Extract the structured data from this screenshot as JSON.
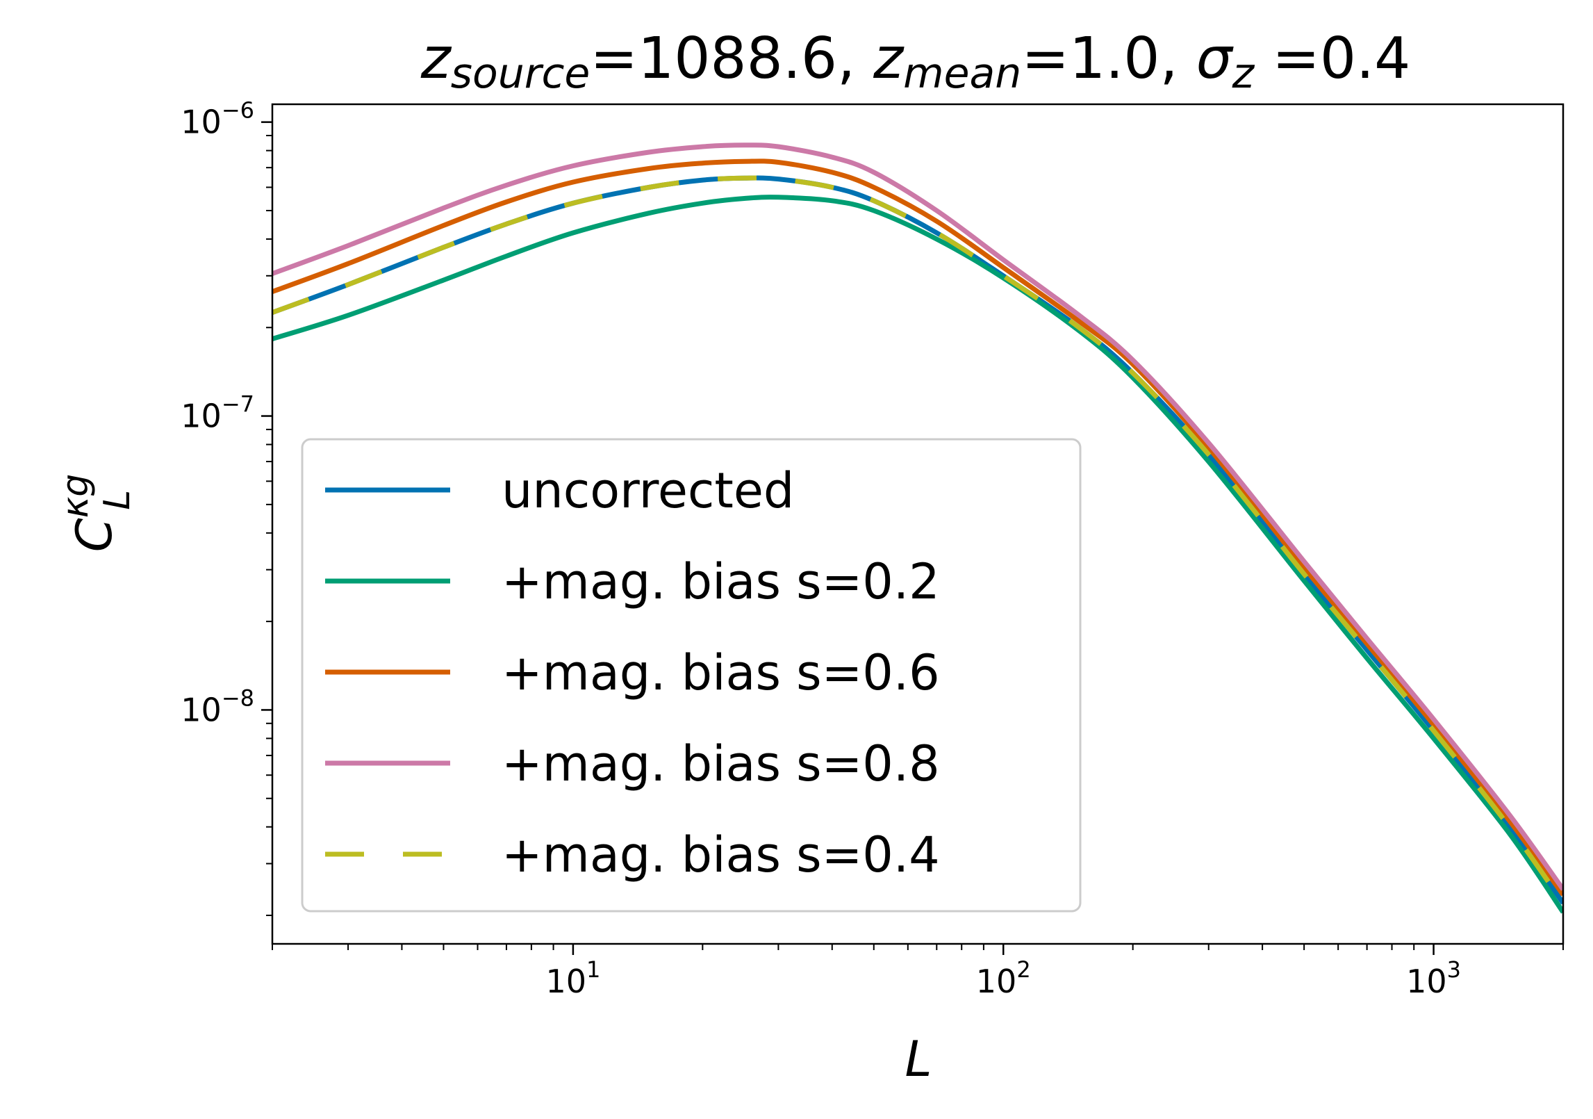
{
  "chart_data": {
    "type": "line",
    "title": {
      "parts": [
        {
          "text": "z",
          "style": "italic"
        },
        {
          "text": "source",
          "style": "italic-sub"
        },
        {
          "text": "=1088.6, ",
          "style": "normal"
        },
        {
          "text": "z",
          "style": "italic"
        },
        {
          "text": "mean",
          "style": "italic-sub"
        },
        {
          "text": "=1.0, ",
          "style": "normal"
        },
        {
          "text": "σ",
          "style": "italic"
        },
        {
          "text": "z",
          "style": "italic-sub"
        },
        {
          "text": " =0.4",
          "style": "normal"
        }
      ]
    },
    "xlabel": "L",
    "ylabel": {
      "main": "C",
      "sup": "κg",
      "sub": "L"
    },
    "xscale": "log",
    "yscale": "log",
    "xlim": [
      2,
      2000
    ],
    "ylim": [
      1.6e-09,
      1.15e-06
    ],
    "xticks": [
      {
        "value": 10,
        "base": "10",
        "exp": "1"
      },
      {
        "value": 100,
        "base": "10",
        "exp": "2"
      },
      {
        "value": 1000,
        "base": "10",
        "exp": "3"
      }
    ],
    "yticks": [
      {
        "value": 1e-06,
        "base": "10",
        "exp": "−6"
      },
      {
        "value": 1e-07,
        "base": "10",
        "exp": "−7"
      },
      {
        "value": 1e-08,
        "base": "10",
        "exp": "−8"
      }
    ],
    "x": [
      2,
      3,
      5,
      7,
      10,
      15,
      20,
      25,
      30,
      40,
      50,
      70,
      100,
      150,
      200,
      300,
      500,
      700,
      1000,
      1500,
      2000
    ],
    "series": [
      {
        "name": "uncorrected",
        "color": "#0072B2",
        "dash": "solid",
        "values": [
          2.25e-07,
          2.8e-07,
          3.75e-07,
          4.5e-07,
          5.3e-07,
          6e-07,
          6.35e-07,
          6.45e-07,
          6.4e-07,
          6e-07,
          5.4e-07,
          4.2e-07,
          3e-07,
          2e-07,
          1.4e-07,
          7.4e-08,
          2.9e-08,
          1.6e-08,
          8.5e-09,
          4e-09,
          2.2e-09
        ]
      },
      {
        "name": "+mag. bias s=0.2",
        "color": "#009E73",
        "dash": "solid",
        "values": [
          1.83e-07,
          2.2e-07,
          2.9e-07,
          3.5e-07,
          4.2e-07,
          4.9e-07,
          5.3e-07,
          5.5e-07,
          5.55e-07,
          5.4e-07,
          5e-07,
          4e-07,
          2.95e-07,
          1.95e-07,
          1.35e-07,
          7e-08,
          2.75e-08,
          1.5e-08,
          8e-09,
          3.8e-09,
          2.05e-09
        ]
      },
      {
        "name": "+mag. bias s=0.6",
        "color": "#D55E00",
        "dash": "solid",
        "values": [
          2.65e-07,
          3.3e-07,
          4.45e-07,
          5.35e-07,
          6.25e-07,
          6.95e-07,
          7.25e-07,
          7.35e-07,
          7.3e-07,
          6.75e-07,
          6e-07,
          4.6e-07,
          3.2e-07,
          2.1e-07,
          1.5e-07,
          7.8e-08,
          3.05e-08,
          1.68e-08,
          8.9e-09,
          4.2e-09,
          2.35e-09
        ]
      },
      {
        "name": "+mag. bias s=0.8",
        "color": "#CC79A7",
        "dash": "solid",
        "values": [
          3.05e-07,
          3.8e-07,
          5.1e-07,
          6.1e-07,
          7.1e-07,
          7.9e-07,
          8.25e-07,
          8.35e-07,
          8.25e-07,
          7.6e-07,
          6.75e-07,
          5e-07,
          3.4e-07,
          2.2e-07,
          1.55e-07,
          8.1e-08,
          3.2e-08,
          1.75e-08,
          9.3e-09,
          4.4e-09,
          2.45e-09
        ]
      },
      {
        "name": "+mag. bias s=0.4",
        "color": "#BCBD22",
        "dash": "dashed",
        "values": [
          2.25e-07,
          2.8e-07,
          3.75e-07,
          4.5e-07,
          5.3e-07,
          6e-07,
          6.35e-07,
          6.45e-07,
          6.4e-07,
          6e-07,
          5.4e-07,
          4.2e-07,
          3e-07,
          2e-07,
          1.4e-07,
          7.4e-08,
          2.9e-08,
          1.6e-08,
          8.5e-09,
          4e-09,
          2.2e-09
        ]
      }
    ],
    "legend": {
      "location": "lower-left",
      "order": [
        "uncorrected",
        "+mag. bias s=0.2",
        "+mag. bias s=0.6",
        "+mag. bias s=0.8",
        "+mag. bias s=0.4"
      ]
    },
    "grid": false
  }
}
